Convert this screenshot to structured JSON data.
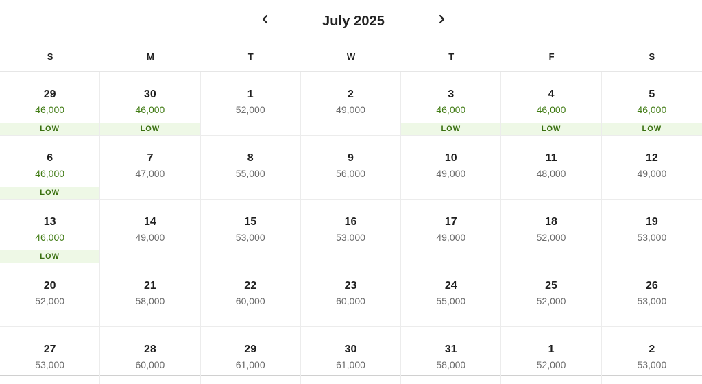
{
  "header": {
    "title": "July 2025",
    "prev_icon": "chevron-left-icon",
    "next_icon": "chevron-right-icon"
  },
  "weekdays": [
    "S",
    "M",
    "T",
    "W",
    "T",
    "F",
    "S"
  ],
  "low_label": "LOW",
  "colors": {
    "low_price": "#3f7a12",
    "low_badge_bg": "#eef8e6",
    "regular_price": "#6a6a6a"
  },
  "days": [
    {
      "day": "29",
      "price": "46,000",
      "low": true
    },
    {
      "day": "30",
      "price": "46,000",
      "low": true
    },
    {
      "day": "1",
      "price": "52,000",
      "low": false
    },
    {
      "day": "2",
      "price": "49,000",
      "low": false
    },
    {
      "day": "3",
      "price": "46,000",
      "low": true
    },
    {
      "day": "4",
      "price": "46,000",
      "low": true
    },
    {
      "day": "5",
      "price": "46,000",
      "low": true
    },
    {
      "day": "6",
      "price": "46,000",
      "low": true
    },
    {
      "day": "7",
      "price": "47,000",
      "low": false
    },
    {
      "day": "8",
      "price": "55,000",
      "low": false
    },
    {
      "day": "9",
      "price": "56,000",
      "low": false
    },
    {
      "day": "10",
      "price": "49,000",
      "low": false
    },
    {
      "day": "11",
      "price": "48,000",
      "low": false
    },
    {
      "day": "12",
      "price": "49,000",
      "low": false
    },
    {
      "day": "13",
      "price": "46,000",
      "low": true
    },
    {
      "day": "14",
      "price": "49,000",
      "low": false
    },
    {
      "day": "15",
      "price": "53,000",
      "low": false
    },
    {
      "day": "16",
      "price": "53,000",
      "low": false
    },
    {
      "day": "17",
      "price": "49,000",
      "low": false
    },
    {
      "day": "18",
      "price": "52,000",
      "low": false
    },
    {
      "day": "19",
      "price": "53,000",
      "low": false
    },
    {
      "day": "20",
      "price": "52,000",
      "low": false
    },
    {
      "day": "21",
      "price": "58,000",
      "low": false
    },
    {
      "day": "22",
      "price": "60,000",
      "low": false
    },
    {
      "day": "23",
      "price": "60,000",
      "low": false
    },
    {
      "day": "24",
      "price": "55,000",
      "low": false
    },
    {
      "day": "25",
      "price": "52,000",
      "low": false
    },
    {
      "day": "26",
      "price": "53,000",
      "low": false
    },
    {
      "day": "27",
      "price": "53,000",
      "low": false
    },
    {
      "day": "28",
      "price": "60,000",
      "low": false
    },
    {
      "day": "29",
      "price": "61,000",
      "low": false
    },
    {
      "day": "30",
      "price": "61,000",
      "low": false
    },
    {
      "day": "31",
      "price": "58,000",
      "low": false
    },
    {
      "day": "1",
      "price": "52,000",
      "low": false
    },
    {
      "day": "2",
      "price": "53,000",
      "low": false
    }
  ]
}
